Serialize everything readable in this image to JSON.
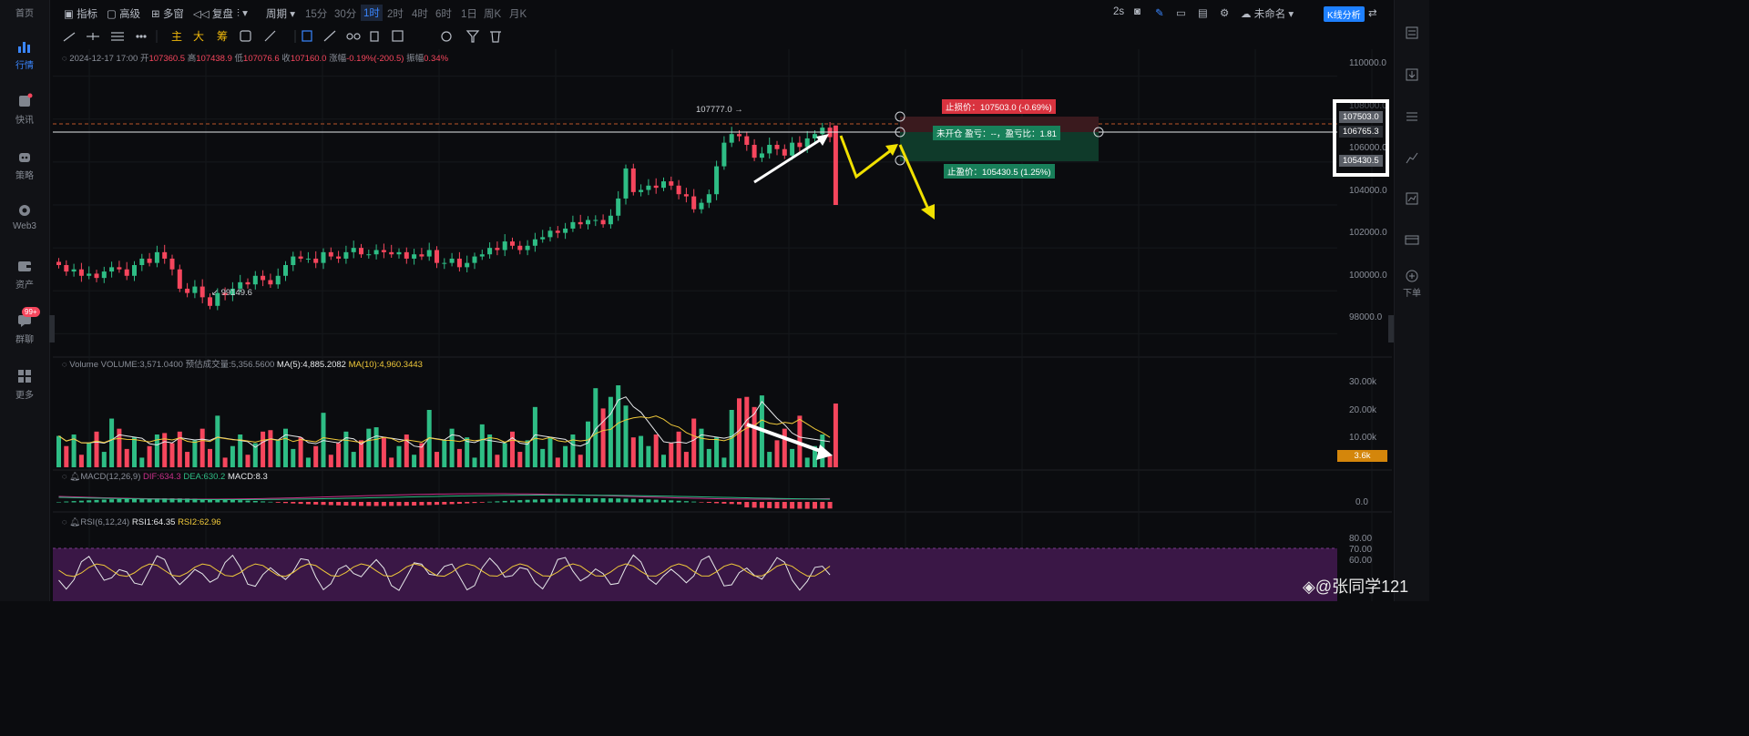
{
  "left_nav": [
    {
      "label": "首页",
      "icon": "home-icon"
    },
    {
      "label": "行情",
      "icon": "bar-chart-icon",
      "active": true
    },
    {
      "label": "快讯",
      "icon": "news-icon"
    },
    {
      "label": "策略",
      "icon": "robot-icon"
    },
    {
      "label": "Web3",
      "icon": "web3-icon"
    },
    {
      "label": "资产",
      "icon": "wallet-icon"
    },
    {
      "label": "群聊",
      "icon": "chat-icon",
      "badge": "99+"
    },
    {
      "label": "更多",
      "icon": "grid-icon"
    }
  ],
  "toolbar": {
    "indicator": "指标",
    "advanced": "高级",
    "multi_window": "多窗",
    "replay": "复盘",
    "period": "周期",
    "intervals": [
      "15分",
      "30分",
      "1时",
      "2时",
      "4时",
      "6时",
      "1日",
      "周K",
      "月K"
    ],
    "selected_interval": "1时",
    "refresh": "2s",
    "layout_name": "未命名",
    "kline_analysis": "K线分析"
  },
  "draw_tools": {
    "main_label": "主",
    "big_label": "大",
    "chip_label": "筹"
  },
  "ohlc": {
    "date": "2024-12-17 17:00",
    "open_label": "开",
    "open": "107360.5",
    "high_label": "高",
    "high": "107438.9",
    "low_label": "低",
    "low": "107076.6",
    "close_label": "收",
    "close": "107160.0",
    "change_label": "涨幅",
    "change": "-0.19%(-200.5)",
    "amp_label": "振幅",
    "amp": "0.34%"
  },
  "price_axis": [
    "110000.0",
    "108000.0",
    "106000.0",
    "104000.0",
    "102000.0",
    "100000.0",
    "98000.0"
  ],
  "price_tags": {
    "stop_loss": "107503.0",
    "current": "106765.3",
    "take_profit": "105430.5"
  },
  "position": {
    "stop_loss_label": "止损价：107503.0 (-0.69%)",
    "status_label": "未开仓  盈亏：--，盈亏比：1.81",
    "take_profit_label": "止盈价：105430.5 (1.25%)"
  },
  "markers": {
    "high": "107777.0",
    "low": "99149.6"
  },
  "volume": {
    "title": "Volume",
    "value": "VOLUME:3,571.0400",
    "estimate": "预估成交量:5,356.5600",
    "ma5": "MA(5):4,885.2082",
    "ma10": "MA(10):4,960.3443",
    "axis": [
      "30.00k",
      "20.00k",
      "10.00k"
    ],
    "last_tag": "3.6k"
  },
  "macd": {
    "title": "MACD(12,26,9)",
    "dif": "DIF:634.3",
    "dea": "DEA:630.2",
    "macd": "MACD:8.3",
    "axis": [
      "0.0"
    ]
  },
  "rsi": {
    "title": "RSI(6,12,24)",
    "rsi1": "RSI1:64.35",
    "rsi2": "RSI2:62.96",
    "axis": [
      "80.00",
      "70.00",
      "60.00"
    ]
  },
  "watermark": "@张同学121",
  "right_nav": [
    {
      "icon": "orderbook-icon"
    },
    {
      "icon": "download-icon"
    },
    {
      "icon": "list-icon"
    },
    {
      "icon": "trend-icon"
    },
    {
      "icon": "chart-box-icon"
    },
    {
      "icon": "card-icon"
    },
    {
      "icon": "order-icon",
      "label": "下单"
    }
  ],
  "colors": {
    "up": "#2ebd85",
    "down": "#f6465d",
    "accent": "#1e80ff",
    "yellow": "#f0c93a",
    "rsi_band": "#3a1746"
  },
  "chart_data": {
    "type": "candlestick",
    "price_range": [
      97000,
      111000
    ],
    "candles_approx_close": [
      101200,
      100900,
      101000,
      100700,
      100800,
      100600,
      100900,
      101100,
      101000,
      100700,
      101200,
      101500,
      101300,
      101800,
      101500,
      101000,
      100100,
      99900,
      100200,
      99700,
      99300,
      99900,
      99800,
      100100,
      100400,
      100300,
      100700,
      100500,
      100300,
      100700,
      101200,
      101600,
      101500,
      101500,
      101300,
      101800,
      101600,
      101500,
      101800,
      102000,
      101700,
      101700,
      101900,
      101800,
      101700,
      101800,
      101500,
      101700,
      101600,
      101900,
      101300,
      101300,
      101500,
      101100,
      101300,
      101600,
      101700,
      102000,
      101900,
      102300,
      102100,
      101900,
      102100,
      102400,
      102500,
      102800,
      102700,
      102900,
      103200,
      103100,
      103300,
      103300,
      103100,
      103500,
      104300,
      105700,
      104600,
      104700,
      104900,
      104800,
      105100,
      104900,
      104500,
      104400,
      103800,
      104100,
      104500,
      105800,
      106900,
      107300,
      107200,
      106800,
      106200,
      106400,
      106800,
      106600,
      106300,
      106900,
      106700,
      107100,
      107300,
      107600,
      107160
    ]
  }
}
